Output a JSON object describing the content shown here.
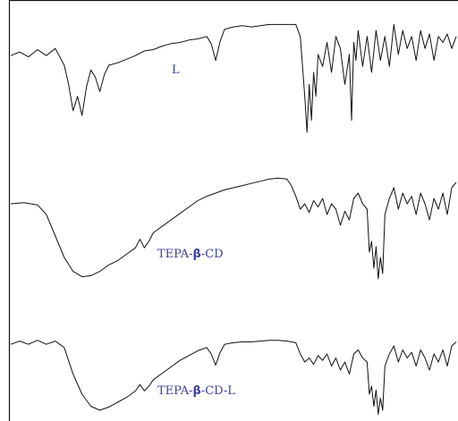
{
  "chart_data": {
    "type": "line",
    "title": "",
    "xlabel": "",
    "ylabel": "",
    "frame": {
      "left": true,
      "top": true,
      "right": false,
      "bottom": false
    },
    "grid": false,
    "legend": "none",
    "label_color": "#3a3fa0",
    "line_color": "#111111",
    "series": [
      {
        "name": "L",
        "label_parts": [
          "L"
        ],
        "x": [
          0.0,
          0.02,
          0.04,
          0.06,
          0.08,
          0.1,
          0.12,
          0.13,
          0.14,
          0.15,
          0.16,
          0.17,
          0.18,
          0.19,
          0.2,
          0.21,
          0.22,
          0.24,
          0.26,
          0.28,
          0.3,
          0.32,
          0.34,
          0.36,
          0.38,
          0.4,
          0.42,
          0.44,
          0.45,
          0.46,
          0.47,
          0.48,
          0.5,
          0.52,
          0.54,
          0.56,
          0.58,
          0.6,
          0.62,
          0.64,
          0.65,
          0.66,
          0.665,
          0.67,
          0.675,
          0.68,
          0.685,
          0.69,
          0.7,
          0.71,
          0.72,
          0.73,
          0.74,
          0.75,
          0.76,
          0.765,
          0.77,
          0.775,
          0.78,
          0.79,
          0.8,
          0.81,
          0.82,
          0.83,
          0.84,
          0.85,
          0.86,
          0.87,
          0.88,
          0.89,
          0.9,
          0.91,
          0.92,
          0.93,
          0.94,
          0.95,
          0.96,
          0.97,
          0.98,
          0.99,
          1.0
        ],
        "y": [
          0.36,
          0.33,
          0.37,
          0.31,
          0.36,
          0.3,
          0.44,
          0.6,
          0.82,
          0.7,
          0.86,
          0.62,
          0.48,
          0.54,
          0.66,
          0.52,
          0.44,
          0.42,
          0.39,
          0.36,
          0.32,
          0.31,
          0.28,
          0.26,
          0.25,
          0.23,
          0.22,
          0.2,
          0.26,
          0.4,
          0.24,
          0.14,
          0.12,
          0.11,
          0.12,
          0.11,
          0.1,
          0.1,
          0.1,
          0.1,
          0.2,
          0.7,
          1.0,
          0.6,
          0.9,
          0.5,
          0.7,
          0.35,
          0.45,
          0.25,
          0.5,
          0.2,
          0.3,
          0.6,
          0.35,
          0.9,
          0.25,
          0.4,
          0.15,
          0.45,
          0.2,
          0.5,
          0.15,
          0.4,
          0.2,
          0.45,
          0.1,
          0.35,
          0.15,
          0.3,
          0.2,
          0.4,
          0.15,
          0.3,
          0.18,
          0.4,
          0.2,
          0.25,
          0.18,
          0.3,
          0.2
        ]
      },
      {
        "name": "TEPA-β-CD",
        "label_parts": [
          "TEPA-",
          "β",
          "-CD"
        ],
        "x": [
          0.0,
          0.03,
          0.06,
          0.08,
          0.1,
          0.12,
          0.14,
          0.16,
          0.18,
          0.2,
          0.22,
          0.24,
          0.26,
          0.28,
          0.29,
          0.3,
          0.31,
          0.32,
          0.34,
          0.36,
          0.38,
          0.4,
          0.42,
          0.44,
          0.46,
          0.48,
          0.5,
          0.52,
          0.54,
          0.56,
          0.58,
          0.6,
          0.62,
          0.63,
          0.64,
          0.65,
          0.66,
          0.67,
          0.68,
          0.69,
          0.7,
          0.71,
          0.72,
          0.73,
          0.74,
          0.75,
          0.76,
          0.77,
          0.78,
          0.79,
          0.8,
          0.805,
          0.81,
          0.815,
          0.82,
          0.825,
          0.83,
          0.835,
          0.84,
          0.85,
          0.86,
          0.87,
          0.88,
          0.89,
          0.9,
          0.91,
          0.92,
          0.93,
          0.94,
          0.95,
          0.96,
          0.97,
          0.98,
          0.99,
          1.0
        ],
        "y": [
          0.25,
          0.24,
          0.26,
          0.35,
          0.55,
          0.75,
          0.88,
          0.93,
          0.92,
          0.88,
          0.82,
          0.78,
          0.72,
          0.66,
          0.58,
          0.66,
          0.6,
          0.52,
          0.46,
          0.4,
          0.34,
          0.28,
          0.22,
          0.18,
          0.15,
          0.12,
          0.1,
          0.08,
          0.06,
          0.04,
          0.02,
          0.01,
          0.02,
          0.08,
          0.18,
          0.3,
          0.25,
          0.33,
          0.22,
          0.28,
          0.2,
          0.35,
          0.25,
          0.3,
          0.45,
          0.32,
          0.4,
          0.2,
          0.15,
          0.25,
          0.3,
          0.7,
          0.6,
          0.85,
          0.65,
          0.95,
          0.75,
          0.9,
          0.35,
          0.2,
          0.1,
          0.3,
          0.15,
          0.25,
          0.18,
          0.35,
          0.15,
          0.25,
          0.4,
          0.2,
          0.3,
          0.15,
          0.35,
          0.1,
          0.05
        ]
      },
      {
        "name": "TEPA-β-CD-L",
        "label_parts": [
          "TEPA-",
          "β",
          "-CD-L"
        ],
        "x": [
          0.0,
          0.02,
          0.04,
          0.06,
          0.08,
          0.1,
          0.12,
          0.14,
          0.16,
          0.18,
          0.2,
          0.22,
          0.24,
          0.26,
          0.28,
          0.29,
          0.3,
          0.31,
          0.32,
          0.34,
          0.36,
          0.38,
          0.4,
          0.42,
          0.44,
          0.45,
          0.46,
          0.47,
          0.48,
          0.5,
          0.52,
          0.54,
          0.56,
          0.58,
          0.6,
          0.62,
          0.64,
          0.65,
          0.66,
          0.67,
          0.68,
          0.69,
          0.7,
          0.71,
          0.72,
          0.73,
          0.74,
          0.75,
          0.76,
          0.77,
          0.78,
          0.79,
          0.8,
          0.805,
          0.81,
          0.815,
          0.82,
          0.825,
          0.83,
          0.835,
          0.84,
          0.85,
          0.86,
          0.87,
          0.88,
          0.89,
          0.9,
          0.91,
          0.92,
          0.93,
          0.94,
          0.95,
          0.96,
          0.97,
          0.98,
          0.99,
          1.0
        ],
        "y": [
          0.08,
          0.04,
          0.08,
          0.03,
          0.08,
          0.04,
          0.12,
          0.45,
          0.7,
          0.85,
          0.9,
          0.86,
          0.8,
          0.74,
          0.66,
          0.58,
          0.66,
          0.6,
          0.52,
          0.44,
          0.36,
          0.28,
          0.22,
          0.16,
          0.12,
          0.2,
          0.34,
          0.18,
          0.08,
          0.06,
          0.05,
          0.05,
          0.04,
          0.03,
          0.03,
          0.04,
          0.06,
          0.2,
          0.3,
          0.25,
          0.33,
          0.22,
          0.28,
          0.2,
          0.35,
          0.25,
          0.4,
          0.3,
          0.45,
          0.2,
          0.15,
          0.25,
          0.3,
          0.7,
          0.6,
          0.85,
          0.65,
          0.95,
          0.75,
          0.9,
          0.35,
          0.2,
          0.1,
          0.3,
          0.15,
          0.25,
          0.18,
          0.35,
          0.15,
          0.25,
          0.4,
          0.2,
          0.3,
          0.15,
          0.35,
          0.1,
          0.05
        ]
      }
    ]
  }
}
